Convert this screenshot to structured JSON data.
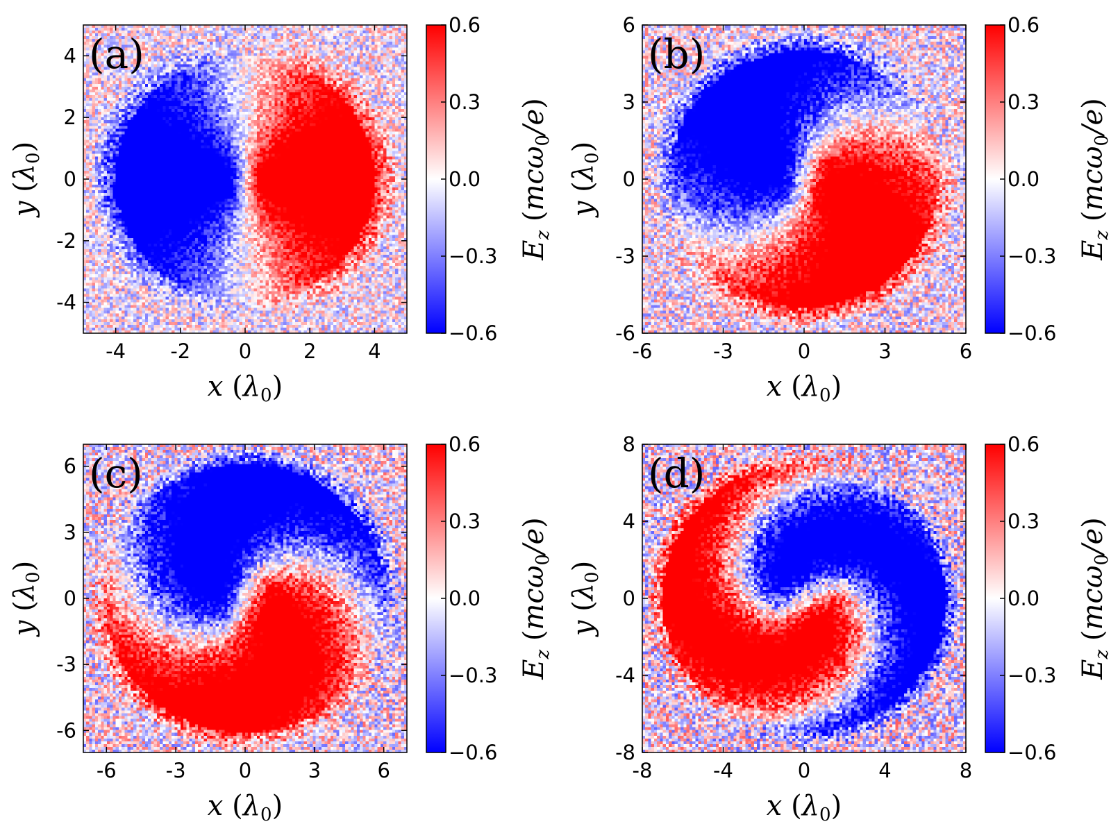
{
  "figure": {
    "colorbar": {
      "label": "E_z (mcω_0/e)",
      "label_parts": {
        "symbol": "E",
        "subscript": "z",
        "open": "(",
        "unit_main": "mcω",
        "unit_sub": "0",
        "unit_tail": "/e",
        "close": ")"
      },
      "ticks": [
        0.6,
        0.3,
        0.0,
        -0.3,
        -0.6
      ],
      "tick_labels": [
        "0.6",
        "0.3",
        "0.0",
        "−0.3",
        "−0.6"
      ],
      "range": [
        -0.6,
        0.6
      ],
      "colors": {
        "neg": "#0000ff",
        "zero": "#ffffff",
        "pos": "#ff0000"
      }
    }
  },
  "chart_data": [
    {
      "type": "heatmap",
      "panel": "(a)",
      "xlabel": {
        "var": "x",
        "unit_open": "(",
        "unit": "λ",
        "unit_sub": "0",
        "unit_close": ")"
      },
      "ylabel": {
        "var": "y",
        "unit_open": "(",
        "unit": "λ",
        "unit_sub": "0",
        "unit_close": ")"
      },
      "xlim": [
        -5,
        5
      ],
      "ylim": [
        -5,
        5
      ],
      "xticks": [
        -4,
        -2,
        0,
        2,
        4
      ],
      "xtick_labels": [
        "-4",
        "-2",
        "0",
        "2",
        "4"
      ],
      "yticks": [
        4,
        2,
        0,
        -2,
        -4
      ],
      "ytick_labels": [
        "4",
        "2",
        "0",
        "-2",
        "-4"
      ],
      "field": {
        "quantity": "E_z",
        "outer_radius": 4.0,
        "inner_radius": 0.6,
        "core_positive_direction_deg": 0,
        "twist": 0.0,
        "noise": 0.35
      }
    },
    {
      "type": "heatmap",
      "panel": "(b)",
      "xlabel": {
        "var": "x",
        "unit_open": "(",
        "unit": "λ",
        "unit_sub": "0",
        "unit_close": ")"
      },
      "ylabel": {
        "var": "y",
        "unit_open": "(",
        "unit": "λ",
        "unit_sub": "0",
        "unit_close": ")"
      },
      "xlim": [
        -6,
        6
      ],
      "ylim": [
        -6,
        6
      ],
      "xticks": [
        -6,
        -3,
        0,
        3,
        6
      ],
      "xtick_labels": [
        "-6",
        "-3",
        "0",
        "3",
        "6"
      ],
      "yticks": [
        6,
        3,
        0,
        -3,
        -6
      ],
      "ytick_labels": [
        "6",
        "3",
        "0",
        "-3",
        "-6"
      ],
      "field": {
        "quantity": "E_z",
        "outer_radius": 5.0,
        "inner_radius": 1.0,
        "core_positive_direction_deg": -15,
        "twist": 0.35,
        "noise": 0.4
      }
    },
    {
      "type": "heatmap",
      "panel": "(c)",
      "xlabel": {
        "var": "x",
        "unit_open": "(",
        "unit": "λ",
        "unit_sub": "0",
        "unit_close": ")"
      },
      "ylabel": {
        "var": "y",
        "unit_open": "(",
        "unit": "λ",
        "unit_sub": "0",
        "unit_close": ")"
      },
      "xlim": [
        -7,
        7
      ],
      "ylim": [
        -7,
        7
      ],
      "xticks": [
        -6,
        -3,
        0,
        3,
        6
      ],
      "xtick_labels": [
        "-6",
        "-3",
        "0",
        "3",
        "6"
      ],
      "yticks": [
        6,
        3,
        0,
        -3,
        -6
      ],
      "ytick_labels": [
        "6",
        "3",
        "0",
        "-3",
        "-6"
      ],
      "field": {
        "quantity": "E_z",
        "outer_radius": 6.1,
        "inner_radius": 1.2,
        "core_positive_direction_deg": -25,
        "twist": 0.6,
        "noise": 0.45
      }
    },
    {
      "type": "heatmap",
      "panel": "(d)",
      "xlabel": {
        "var": "x",
        "unit_open": "(",
        "unit": "λ",
        "unit_sub": "0",
        "unit_close": ")"
      },
      "ylabel": {
        "var": "y",
        "unit_open": "(",
        "unit": "λ",
        "unit_sub": "0",
        "unit_close": ")"
      },
      "xlim": [
        -8,
        8
      ],
      "ylim": [
        -8,
        8
      ],
      "xticks": [
        -8,
        -4,
        0,
        4,
        8
      ],
      "xtick_labels": [
        "-8",
        "-4",
        "0",
        "4",
        "8"
      ],
      "yticks": [
        8,
        4,
        0,
        -4,
        -8
      ],
      "ytick_labels": [
        "8",
        "4",
        "0",
        "-4",
        "-8"
      ],
      "field": {
        "quantity": "E_z",
        "outer_radius": 7.0,
        "inner_radius": 1.4,
        "core_positive_direction_deg": -60,
        "twist": 1.0,
        "noise": 0.5
      }
    }
  ]
}
